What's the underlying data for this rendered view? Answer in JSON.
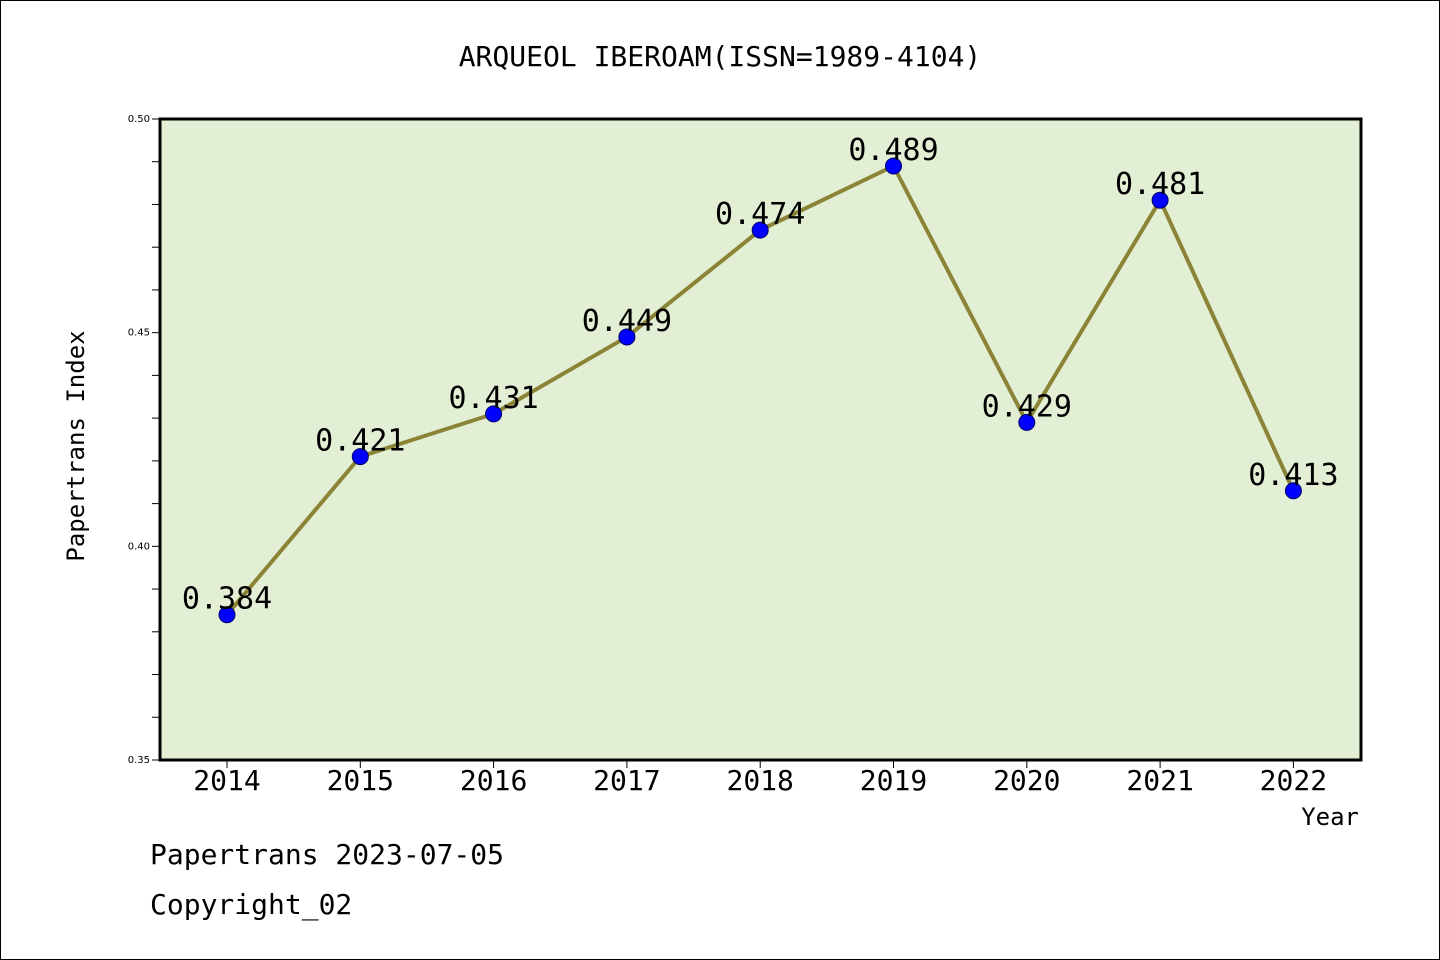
{
  "chart_data": {
    "type": "line",
    "title": "ARQUEOL IBEROAM(ISSN=1989-4104)",
    "xlabel": "Year",
    "ylabel": "Papertrans Index",
    "categories": [
      "2014",
      "2015",
      "2016",
      "2017",
      "2018",
      "2019",
      "2020",
      "2021",
      "2022"
    ],
    "series": [
      {
        "values": [
          0.384,
          0.421,
          0.431,
          0.449,
          0.474,
          0.489,
          0.429,
          0.481,
          0.413
        ],
        "data_labels": [
          "0.384",
          "0.421",
          "0.431",
          "0.449",
          "0.474",
          "0.489",
          "0.429",
          "0.481",
          "0.413"
        ]
      }
    ],
    "ylim": [
      0.35,
      0.5
    ],
    "yticks": [
      "0.35",
      "0.40",
      "0.45",
      "0.50"
    ],
    "grid": false,
    "colors": {
      "plot_background": "#e2efd4",
      "line": "#8b8437",
      "marker": "#0000ff"
    }
  },
  "footer": {
    "line1": "Papertrans 2023-07-05",
    "line2": "Copyright_02"
  }
}
